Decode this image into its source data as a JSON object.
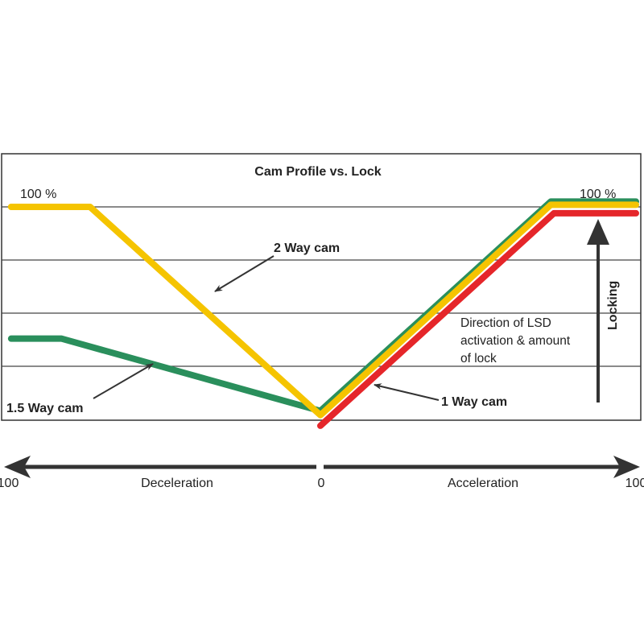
{
  "chart_data": {
    "type": "line",
    "title": "Cam Profile vs. Lock",
    "xlim": [
      -100,
      100
    ],
    "ylim": [
      0,
      100
    ],
    "grid": true,
    "x_tick_labels": [
      "100",
      "0",
      "100"
    ],
    "x_direction_labels": {
      "left": "Deceleration",
      "right": "Acceleration"
    },
    "y_labels": {
      "left": "100 %",
      "right": "100 %"
    },
    "series": [
      {
        "name": "2 Way cam",
        "color": "#f5c400",
        "x": [
          -98,
          -73,
          0,
          73,
          100
        ],
        "y": [
          100,
          100,
          2,
          101,
          101
        ]
      },
      {
        "name": "1.5 Way cam",
        "color": "#2a8f5c",
        "x": [
          -98,
          -82,
          0,
          73,
          100
        ],
        "y": [
          38,
          38,
          4,
          102.5,
          102.5
        ]
      },
      {
        "name": "1 Way cam",
        "color": "#e5262a",
        "x": [
          0,
          74,
          100
        ],
        "y": [
          -3,
          97,
          97
        ]
      }
    ],
    "annotations": {
      "two_way": "2 Way cam",
      "one_five_way": "1.5 Way cam",
      "one_way": "1 Way cam",
      "direction": [
        "Direction of LSD",
        "activation & amount",
        "of lock"
      ],
      "locking": "Locking"
    }
  }
}
